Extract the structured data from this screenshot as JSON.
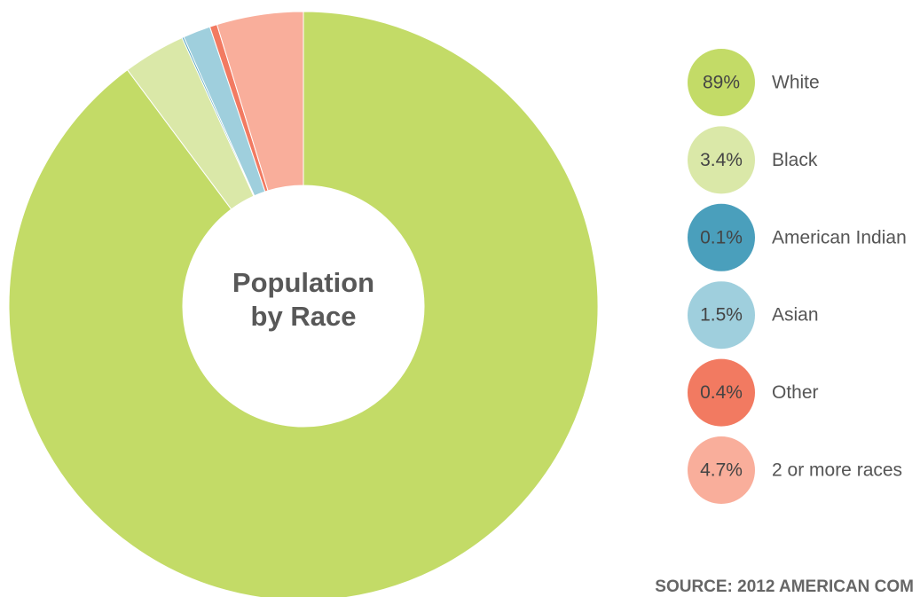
{
  "chart_data": {
    "type": "donut",
    "title": "Population by Race",
    "categories": [
      "White",
      "Black",
      "American Indian",
      "Asian",
      "Other",
      "2 or more races"
    ],
    "values": [
      89,
      3.4,
      0.1,
      1.5,
      0.4,
      4.7
    ],
    "value_labels": [
      "89%",
      "3.4%",
      "0.1%",
      "1.5%",
      "0.4%",
      "4.7%"
    ],
    "colors": [
      "#c3db67",
      "#dae8a8",
      "#4a9fbc",
      "#9fcfdd",
      "#f27a61",
      "#f9ae9b"
    ],
    "legend": "right",
    "source": "SOURCE: 2012 AMERICAN COM"
  }
}
